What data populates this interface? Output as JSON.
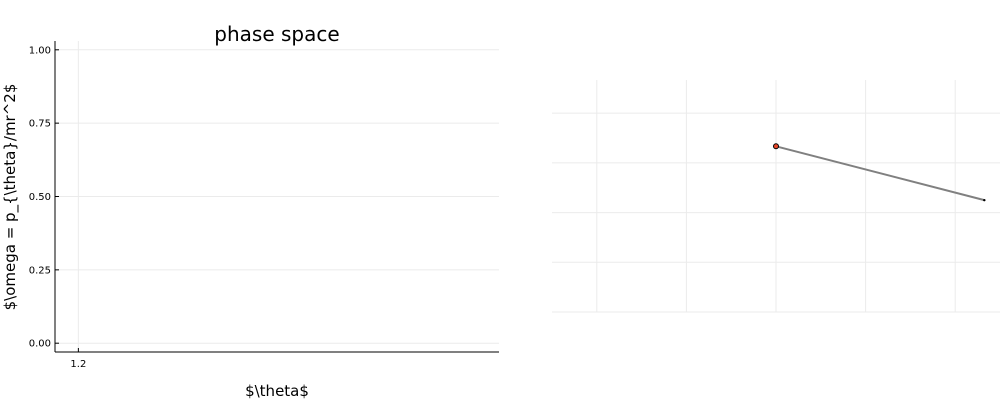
{
  "chart_data": [
    {
      "type": "scatter",
      "title": "phase space",
      "xlabel": "$\\theta$",
      "ylabel": "$\\omega = p_{\\theta}/mr^2$",
      "ylim": [
        -0.03,
        1.03
      ],
      "xlim": [
        1.19,
        1.38
      ],
      "x_ticks": [
        "1.2"
      ],
      "y_ticks": [
        "0.00",
        "0.25",
        "0.50",
        "0.75",
        "1.00"
      ],
      "grid": true,
      "series": [
        {
          "x": [],
          "y": []
        }
      ]
    },
    {
      "type": "line",
      "title": "",
      "grid": true,
      "axes_visible": false,
      "xlim": [
        -1,
        1
      ],
      "ylim": [
        -1,
        0.4
      ],
      "series": [
        {
          "x": [
            0,
            0.93
          ],
          "y": [
            0,
            -0.325
          ],
          "color": "#808080"
        }
      ],
      "pivot": {
        "x": 0,
        "y": 0,
        "color": "#e8472a"
      },
      "bob": {
        "x": 0.93,
        "y": -0.325,
        "color": "#000000"
      }
    }
  ]
}
